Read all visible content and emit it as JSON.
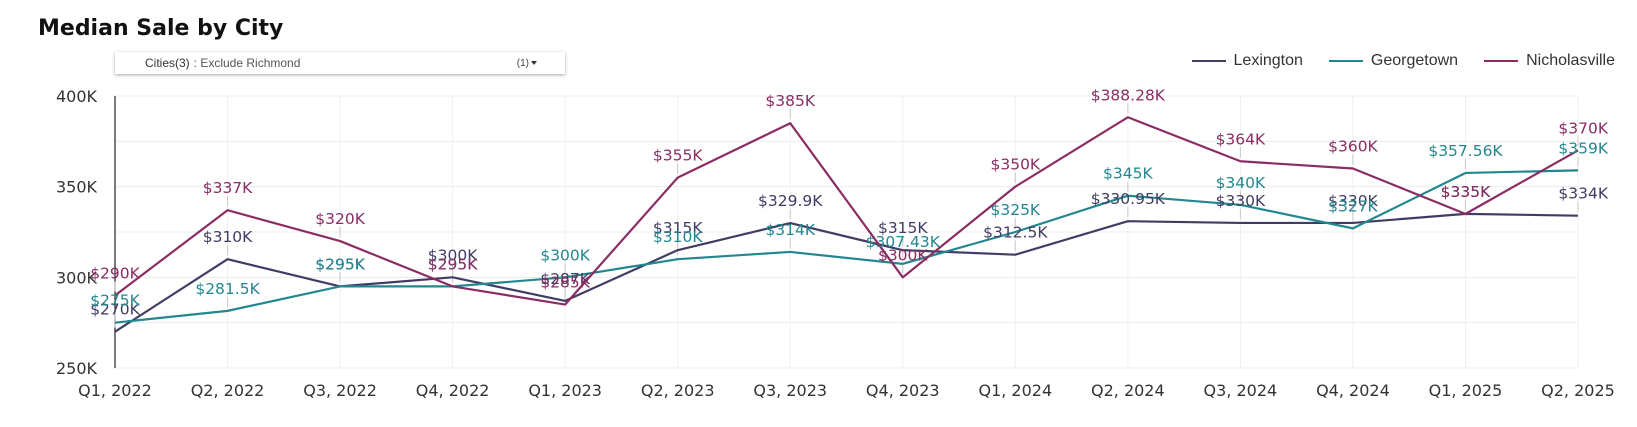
{
  "chart_data": {
    "type": "line",
    "title": "Median Sale by City",
    "filter": {
      "name": "Cities(3)",
      "value": ": Exclude Richmond",
      "count": "(1)"
    },
    "categories": [
      "Q1, 2022",
      "Q2, 2022",
      "Q3, 2022",
      "Q4, 2022",
      "Q1, 2023",
      "Q2, 2023",
      "Q3, 2023",
      "Q4, 2023",
      "Q1, 2024",
      "Q2, 2024",
      "Q3, 2024",
      "Q4, 2024",
      "Q1, 2025",
      "Q2, 2025"
    ],
    "ylim": [
      250000,
      400000
    ],
    "yticks": [
      250000,
      300000,
      350000,
      400000
    ],
    "ytick_labels": [
      "250K",
      "300K",
      "350K",
      "400K"
    ],
    "legend_position": "top-right",
    "grid": true,
    "series": [
      {
        "name": "Lexington",
        "color": "#3f3d63",
        "values": [
          270000,
          310000,
          295000,
          300000,
          287000,
          315000,
          329900,
          315000,
          312500,
          330950,
          330000,
          330000,
          335000,
          334000
        ],
        "labels": [
          "$270K",
          "$310K",
          "$295K",
          "$300K",
          "$287K",
          "$315K",
          "$329.9K",
          "$315K",
          "$312.5K",
          "$330.95K",
          "$330K",
          "$330K",
          "$335K",
          "$334K"
        ]
      },
      {
        "name": "Georgetown",
        "color": "#22878f",
        "values": [
          275000,
          281500,
          295000,
          295000,
          300000,
          310000,
          314000,
          307430,
          325000,
          345000,
          340000,
          327000,
          357560,
          359000
        ],
        "labels": [
          "$275K",
          "$281.5K",
          "$295K",
          "$295K",
          "$300K",
          "$310K",
          "$314K",
          "$307.43K",
          "$325K",
          "$345K",
          "$340K",
          "$327K",
          "$357.56K",
          "$359K"
        ]
      },
      {
        "name": "Nicholasville",
        "color": "#8b2d63",
        "values": [
          290000,
          337000,
          320000,
          295000,
          285000,
          355000,
          385000,
          300000,
          350000,
          388280,
          364000,
          360000,
          335000,
          370000
        ],
        "labels": [
          "$290K",
          "$337K",
          "$320K",
          "$295K",
          "$285K",
          "$355K",
          "$385K",
          "$300K",
          "$350K",
          "$388.28K",
          "$364K",
          "$360K",
          "$335K",
          "$370K"
        ]
      }
    ]
  }
}
